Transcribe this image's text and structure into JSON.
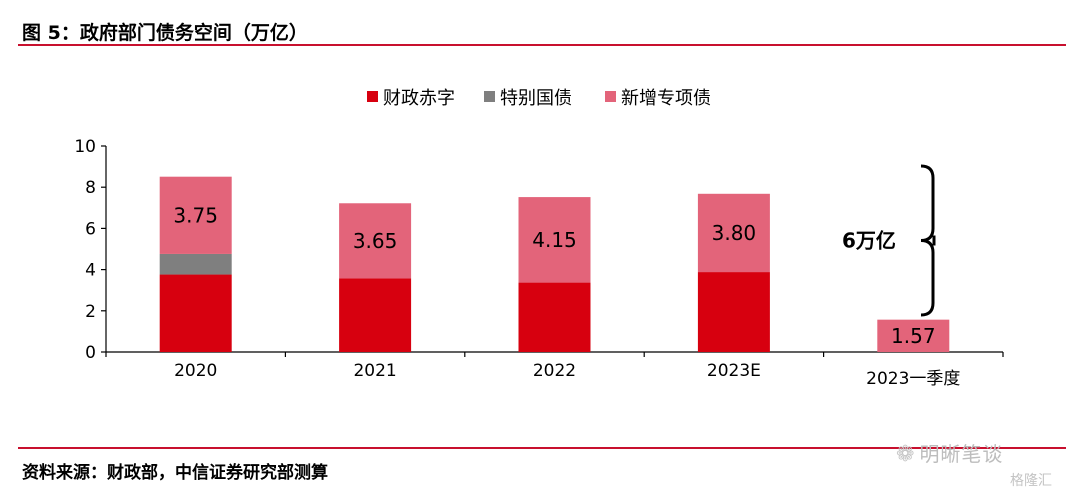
{
  "header": {
    "title": "图 5：政府部门债务空间（万亿）"
  },
  "footer": {
    "source": "资料来源：财政部，中信证券研究部测算"
  },
  "watermark": {
    "text": "明晰笔谈",
    "sub": "格隆汇"
  },
  "colors": {
    "rule": "#c8102e",
    "fiscal": "#d7000f",
    "special": "#7f7f7f",
    "bond": "#e3647a"
  },
  "chart_data": {
    "type": "bar",
    "stacked": true,
    "categories": [
      "2020",
      "2021",
      "2022",
      "2023E",
      "2023一季度"
    ],
    "series": [
      {
        "name": "财政赤字",
        "color": "#d7000f",
        "values": [
          3.76,
          3.57,
          3.37,
          3.88,
          0
        ]
      },
      {
        "name": "特别国债",
        "color": "#7f7f7f",
        "values": [
          1.0,
          0,
          0,
          0,
          0
        ]
      },
      {
        "name": "新增专项债",
        "color": "#e3647a",
        "values": [
          3.75,
          3.65,
          4.15,
          3.8,
          1.57
        ]
      }
    ],
    "data_labels": [
      "3.75",
      "3.65",
      "4.15",
      "3.80",
      "1.57"
    ],
    "ylim": [
      0,
      10
    ],
    "yticks": [
      0,
      2,
      4,
      6,
      8,
      10
    ],
    "annotation": "6万亿",
    "legend_position": "top-center",
    "grid": false
  }
}
